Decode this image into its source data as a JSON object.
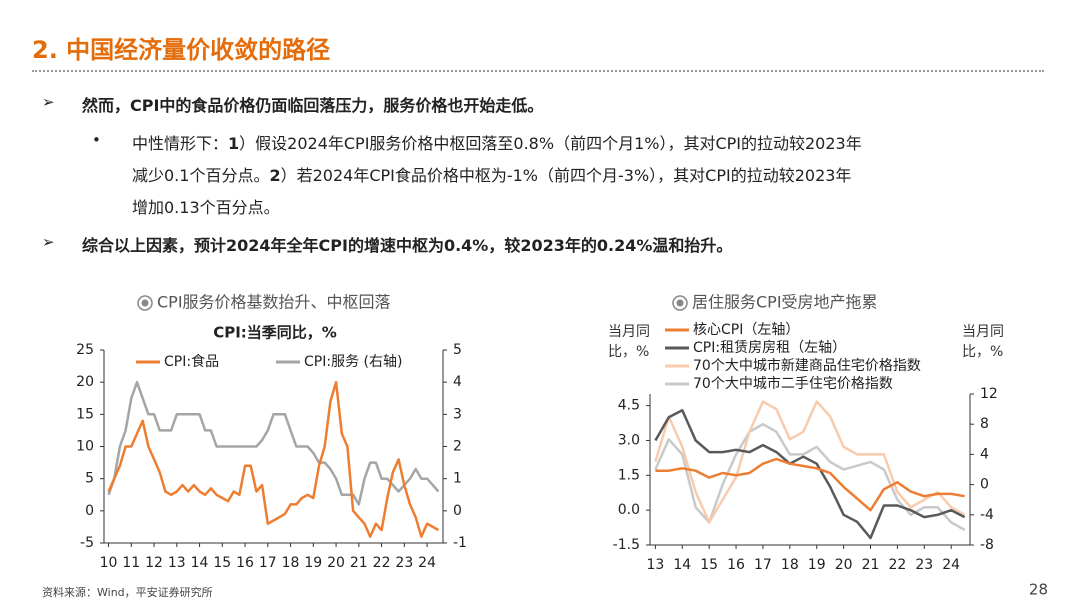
{
  "header": {
    "title": "2. 中国经济量价收敛的路径"
  },
  "items": [
    {
      "level": 1,
      "lines": [
        [
          {
            "text": "然而，CPI中的食品价格仍面临回落压力，服务价格也开始走低。",
            "bold": true
          }
        ]
      ]
    },
    {
      "level": 2,
      "lines": [
        [
          {
            "text": "中性情形下："
          },
          {
            "text": "1",
            "bold": true
          },
          {
            "text": "）假设2024年CPI服务价格中枢回落至0.8%（前四个月1%），其对CPI的拉动较2023年"
          }
        ],
        [
          {
            "text": "减少0.1个百分点。"
          },
          {
            "text": "2",
            "bold": true
          },
          {
            "text": "）若2024年CPI食品价格中枢为-1%（前四个月-3%），其对CPI的拉动较2023年"
          }
        ],
        [
          {
            "text": "增加0.13个百分点。"
          }
        ]
      ]
    },
    {
      "level": 1,
      "lines": [
        [
          {
            "text": "综合以上因素，预计2024年全年CPI的增速中枢为0.4%，较2023年的0.24%温和抬升。",
            "bold": true
          }
        ]
      ]
    }
  ],
  "source": "资料来源：Wind，平安证券研究所",
  "page_number": "28",
  "chart_data": [
    {
      "type": "line",
      "title": "CPI服务价格基数抬升、中枢回落",
      "subtitle": "CPI:当季同比，%",
      "legend": "top",
      "x": [
        10,
        10.25,
        10.5,
        10.75,
        11,
        11.25,
        11.5,
        11.75,
        12,
        12.25,
        12.5,
        12.75,
        13,
        13.25,
        13.5,
        13.75,
        14,
        14.25,
        14.5,
        14.75,
        15,
        15.25,
        15.5,
        15.75,
        16,
        16.25,
        16.5,
        16.75,
        17,
        17.25,
        17.5,
        17.75,
        18,
        18.25,
        18.5,
        18.75,
        19,
        19.25,
        19.5,
        19.75,
        20,
        20.25,
        20.5,
        20.75,
        21,
        21.25,
        21.5,
        21.75,
        22,
        22.25,
        22.5,
        22.75,
        23,
        23.25,
        23.5,
        23.75,
        24,
        24.25,
        24.5
      ],
      "xlim": [
        9.8,
        24.7
      ],
      "xticks": [
        10,
        11,
        12,
        13,
        14,
        15,
        16,
        17,
        18,
        19,
        20,
        21,
        22,
        23,
        24
      ],
      "ylim": [
        -5,
        25
      ],
      "yticks": [
        -5,
        0,
        5,
        10,
        15,
        20,
        25
      ],
      "y2lim": [
        -1,
        5
      ],
      "y2ticks": [
        -1,
        0,
        1,
        2,
        3,
        4,
        5
      ],
      "series": [
        {
          "name": "CPI:食品",
          "color": "#ed7d31",
          "values": [
            3,
            5,
            7,
            10,
            10,
            12,
            14,
            10,
            8,
            6,
            3,
            2.5,
            3,
            4,
            3,
            4,
            3,
            2.5,
            3.5,
            2.5,
            2,
            1.5,
            3,
            2.5,
            7,
            7,
            3,
            4,
            -2,
            -1.5,
            -1,
            -0.5,
            1,
            1,
            2,
            2.5,
            2,
            7,
            10,
            17,
            20,
            12,
            10,
            0,
            -1,
            -2,
            -4,
            -2,
            -3,
            2,
            6,
            8,
            4,
            1,
            -1,
            -4,
            -2,
            -2.5,
            -3
          ]
        },
        {
          "name": "CPI:服务 (右轴)",
          "color": "#a5a5a5",
          "axis": "y2",
          "values": [
            0.5,
            1,
            2,
            2.5,
            3.5,
            4,
            3.5,
            3,
            3,
            2.5,
            2.5,
            2.5,
            3,
            3,
            3,
            3,
            3,
            2.5,
            2.5,
            2,
            2,
            2,
            2,
            2,
            2,
            2,
            2,
            2.2,
            2.5,
            3,
            3,
            3,
            2.5,
            2,
            2,
            2,
            1.8,
            1.5,
            1.5,
            1.3,
            1,
            0.5,
            0.5,
            0.5,
            0.2,
            1,
            1.5,
            1.5,
            1,
            1,
            0.8,
            0.6,
            0.8,
            1,
            1.3,
            1,
            1,
            0.8,
            0.6
          ]
        }
      ]
    },
    {
      "type": "line",
      "title": "居住服务CPI受房地产拖累",
      "ylabel": "当月同比，%",
      "y2label": "当月同比，%",
      "legend": "top-left",
      "x": [
        13,
        13.5,
        14,
        14.5,
        15,
        15.5,
        16,
        16.5,
        17,
        17.5,
        18,
        18.5,
        19,
        19.5,
        20,
        20.5,
        21,
        21.5,
        22,
        22.5,
        23,
        23.5,
        24,
        24.5
      ],
      "xlim": [
        12.8,
        24.7
      ],
      "xticks": [
        13,
        14,
        15,
        16,
        17,
        18,
        19,
        20,
        21,
        22,
        23,
        24
      ],
      "ylim": [
        -1.5,
        5
      ],
      "yticks": [
        -1.5,
        {
          "value": 0,
          "label": "0.0"
        },
        1.5,
        {
          "value": 3,
          "label": "3.0"
        },
        4.5
      ],
      "y2lim": [
        -8,
        12
      ],
      "y2ticks": [
        -8,
        -4,
        0,
        4,
        8,
        12
      ],
      "series": [
        {
          "name": "核心CPI（左轴）",
          "color": "#ed7d31",
          "values": [
            1.7,
            1.7,
            1.8,
            1.7,
            1.4,
            1.6,
            1.5,
            1.6,
            2.0,
            2.2,
            2.0,
            1.9,
            1.8,
            1.6,
            1.0,
            0.5,
            0.0,
            0.9,
            1.2,
            0.8,
            0.6,
            0.7,
            0.7,
            0.6
          ]
        },
        {
          "name": "CPI:租赁房房租（左轴）",
          "color": "#595959",
          "values": [
            3.0,
            4.0,
            4.3,
            3.0,
            2.5,
            2.5,
            2.6,
            2.5,
            2.8,
            2.5,
            2.0,
            2.3,
            2.0,
            1.0,
            -0.2,
            -0.5,
            -1.2,
            0.2,
            0.2,
            0.0,
            -0.3,
            -0.2,
            0.0,
            -0.3
          ]
        },
        {
          "name": "70个大中城市新建商品住宅价格指数",
          "color": "#f8cbad",
          "axis": "y2",
          "values": [
            3,
            9,
            5,
            -1,
            -5,
            -2,
            1,
            7,
            11,
            10,
            6,
            7,
            11,
            9,
            5,
            4,
            4,
            4,
            -1,
            -3,
            -2,
            -1,
            -3,
            -4
          ]
        },
        {
          "name": "70个大中城市二手住宅价格指数",
          "color": "#c9c9c9",
          "axis": "y2",
          "values": [
            2,
            6,
            4,
            -3,
            -5,
            0,
            4,
            7,
            8,
            7,
            4,
            4,
            5,
            3,
            2,
            2.5,
            3,
            2,
            -2,
            -4,
            -3,
            -3,
            -5,
            -6
          ]
        }
      ]
    }
  ]
}
